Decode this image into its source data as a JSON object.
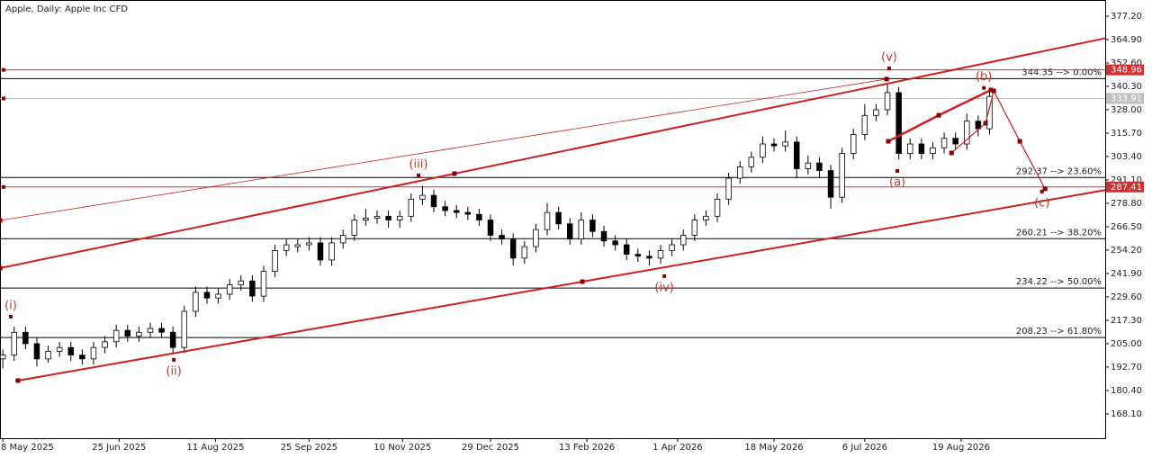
{
  "chart_data": {
    "type": "candlestick",
    "title": "Apple, Daily:  Apple Inc CFD",
    "x": [
      0,
      4,
      8,
      12,
      16,
      20,
      24,
      28,
      32,
      36,
      40,
      44,
      48,
      52,
      56,
      60,
      64,
      68,
      72,
      76,
      80,
      84,
      88,
      92,
      96,
      100,
      104,
      108,
      112,
      116,
      120,
      124,
      128,
      132,
      136,
      140,
      144,
      148,
      152,
      156,
      160,
      164,
      168,
      172,
      176,
      180,
      184,
      188,
      192,
      196,
      200,
      204,
      208,
      212,
      216,
      220,
      224,
      228,
      232,
      236,
      240,
      244,
      248,
      252,
      256,
      260,
      264,
      268,
      272,
      276,
      280,
      284,
      288,
      292,
      296,
      300,
      304,
      308,
      312,
      316,
      320,
      324,
      328,
      332,
      336,
      340,
      344,
      348
    ],
    "open": [
      197,
      199,
      211,
      205,
      197,
      201,
      203,
      199,
      197,
      203,
      206,
      212,
      209,
      211,
      213,
      211,
      203,
      222,
      232,
      229,
      231,
      236,
      238,
      230,
      243,
      254,
      256,
      257,
      258,
      249,
      258,
      262,
      270,
      271,
      272,
      270,
      272,
      281,
      283,
      277,
      275,
      274,
      273,
      270,
      262,
      260,
      250,
      256,
      265,
      274,
      268,
      260,
      270,
      264,
      259,
      257,
      252,
      251,
      250,
      254,
      257,
      262,
      270,
      272,
      281,
      292,
      298,
      303,
      310,
      309,
      311,
      297,
      300,
      296,
      282,
      305,
      315,
      325,
      328,
      337,
      305,
      310,
      305,
      308,
      313,
      310,
      322,
      318
    ],
    "high": [
      202,
      214,
      214,
      208,
      204,
      206,
      206,
      202,
      206,
      209,
      215,
      215,
      214,
      216,
      216,
      214,
      225,
      235,
      235,
      234,
      239,
      241,
      241,
      246,
      257,
      260,
      260,
      261,
      261,
      261,
      265,
      273,
      276,
      275,
      275,
      275,
      284,
      288,
      286,
      280,
      278,
      277,
      276,
      273,
      265,
      263,
      259,
      268,
      279,
      277,
      271,
      274,
      273,
      267,
      262,
      260,
      255,
      254,
      257,
      260,
      265,
      273,
      275,
      284,
      295,
      301,
      306,
      314,
      313,
      317,
      314,
      304,
      303,
      299,
      308,
      318,
      331,
      331,
      342,
      340,
      313,
      313,
      311,
      316,
      316,
      326,
      325,
      338
    ],
    "low": [
      192,
      196,
      202,
      193,
      195,
      198,
      196,
      194,
      194,
      200,
      203,
      206,
      206,
      208,
      208,
      200,
      200,
      219,
      226,
      226,
      228,
      233,
      227,
      227,
      240,
      251,
      253,
      254,
      246,
      246,
      255,
      259,
      267,
      268,
      266,
      266,
      269,
      278,
      274,
      272,
      271,
      270,
      267,
      259,
      257,
      246,
      247,
      253,
      262,
      265,
      257,
      257,
      261,
      256,
      254,
      249,
      248,
      246,
      247,
      251,
      254,
      259,
      267,
      269,
      278,
      289,
      295,
      300,
      306,
      306,
      292,
      294,
      292,
      276,
      279,
      302,
      312,
      322,
      325,
      302,
      302,
      302,
      302,
      305,
      307,
      307,
      314,
      315
    ],
    "close": [
      199,
      211,
      205,
      197,
      201,
      203,
      199,
      197,
      203,
      206,
      212,
      209,
      211,
      213,
      211,
      203,
      222,
      232,
      229,
      231,
      236,
      238,
      230,
      243,
      254,
      257,
      257,
      258,
      249,
      258,
      262,
      270,
      271,
      272,
      270,
      272,
      281,
      283,
      277,
      275,
      274,
      273,
      270,
      262,
      260,
      250,
      256,
      265,
      274,
      268,
      260,
      270,
      264,
      259,
      257,
      252,
      251,
      250,
      254,
      257,
      262,
      270,
      272,
      281,
      292,
      298,
      303,
      310,
      309,
      311,
      297,
      300,
      296,
      282,
      305,
      315,
      325,
      328,
      337,
      305,
      310,
      305,
      308,
      313,
      310,
      322,
      318,
      335
    ],
    "xlim": [
      -1,
      388.8
    ],
    "ylim": [
      155.3,
      385.7
    ],
    "xticks": [
      {
        "value": 0,
        "label": "8 May 2025"
      },
      {
        "value": 41,
        "label": "25 Jun 2025"
      },
      {
        "value": 75,
        "label": "11 Aug 2025"
      },
      {
        "value": 108,
        "label": "25 Sep 2025"
      },
      {
        "value": 141,
        "label": "10 Nov 2025"
      },
      {
        "value": 172,
        "label": "29 Dec 2025"
      },
      {
        "value": 206,
        "label": "13 Feb 2026"
      },
      {
        "value": 238,
        "label": "1 Apr 2026"
      },
      {
        "value": 272,
        "label": "18 May 2026"
      },
      {
        "value": 304,
        "label": "6 Jul 2026"
      },
      {
        "value": 338,
        "label": "19 Aug 2026"
      }
    ],
    "yticks": [
      {
        "value": 377.2,
        "label": "377.20"
      },
      {
        "value": 364.9,
        "label": "364.90"
      },
      {
        "value": 352.6,
        "label": "352.60"
      },
      {
        "value": 340.3,
        "label": "340.30"
      },
      {
        "value": 328,
        "label": "328.00"
      },
      {
        "value": 315.7,
        "label": "315.70"
      },
      {
        "value": 303.4,
        "label": "303.40"
      },
      {
        "value": 291.1,
        "label": "291.10"
      },
      {
        "value": 278.8,
        "label": "278.80"
      },
      {
        "value": 266.5,
        "label": "266.50"
      },
      {
        "value": 254.2,
        "label": "254.20"
      },
      {
        "value": 241.9,
        "label": "241.90"
      },
      {
        "value": 229.6,
        "label": "229.60"
      },
      {
        "value": 217.3,
        "label": "217.30"
      },
      {
        "value": 205,
        "label": "205.00"
      },
      {
        "value": 192.7,
        "label": "192.70"
      },
      {
        "value": 180.4,
        "label": "180.40"
      },
      {
        "value": 168.1,
        "label": "168.10"
      }
    ],
    "fib_levels": [
      {
        "value": 344.35,
        "label": "344.35 --> 0.00%"
      },
      {
        "value": 292.37,
        "label": "292.37 --> 23.60%"
      },
      {
        "value": 260.21,
        "label": "260.21 --> 38.20%"
      },
      {
        "value": 234.22,
        "label": "234.22 --> 50.00%"
      },
      {
        "value": 208.23,
        "label": "208.23 --> 61.80%"
      }
    ],
    "price_lines": [
      {
        "value": 348.96,
        "label": "348.96",
        "color": "#d32f2f"
      },
      {
        "value": 333.91,
        "label": "333.91",
        "color": "#c0c0c0"
      },
      {
        "value": 287.41,
        "label": "287.41",
        "color": "#d32f2f"
      }
    ],
    "trendlines": [
      {
        "points": [
          [
            5.3,
            185.6
          ],
          [
            204.4,
            237.6
          ]
        ],
        "color": "#cc1f1f",
        "width": 2,
        "extend": true
      },
      {
        "points": [
          [
            -1,
            244.7
          ],
          [
            159.3,
            294.4
          ]
        ],
        "color": "#cc1f1f",
        "width": 2,
        "extend": true
      },
      {
        "points": [
          [
            -1,
            269.8
          ],
          [
            311.7,
            344.1
          ]
        ],
        "color": "#cc1f1f",
        "width": 0.8,
        "extend": false
      },
      {
        "points": [
          [
            312.3,
            311.4
          ],
          [
            330.1,
            325.1
          ],
          [
            348.5,
            338.4
          ]
        ],
        "color": "#cc1f1f",
        "width": 2.5,
        "extend": false
      },
      {
        "points": [
          [
            334.6,
            305.3
          ],
          [
            346.6,
            320.9
          ],
          [
            349.5,
            337.9
          ],
          [
            358.7,
            311.4
          ],
          [
            367.6,
            286.4
          ]
        ],
        "color": "#cc1f1f",
        "width": 1.2,
        "extend": false
      }
    ],
    "waves": [
      {
        "label": "(i)",
        "x": 2.8,
        "y": 219.2,
        "position": "above"
      },
      {
        "label": "(ii)",
        "x": 60.3,
        "y": 196.5,
        "position": "below"
      },
      {
        "label": "(iii)",
        "x": 146.6,
        "y": 293.5,
        "position": "above"
      },
      {
        "label": "(iv)",
        "x": 233.3,
        "y": 240.5,
        "position": "below"
      },
      {
        "label": "(v)",
        "x": 312.6,
        "y": 349.7,
        "position": "above"
      },
      {
        "label": "(a)",
        "x": 315.5,
        "y": 295.8,
        "position": "below"
      },
      {
        "label": "(b)",
        "x": 346.0,
        "y": 339.5,
        "position": "above"
      },
      {
        "label": "(c)",
        "x": 366.5,
        "y": 285.0,
        "position": "below"
      }
    ]
  }
}
